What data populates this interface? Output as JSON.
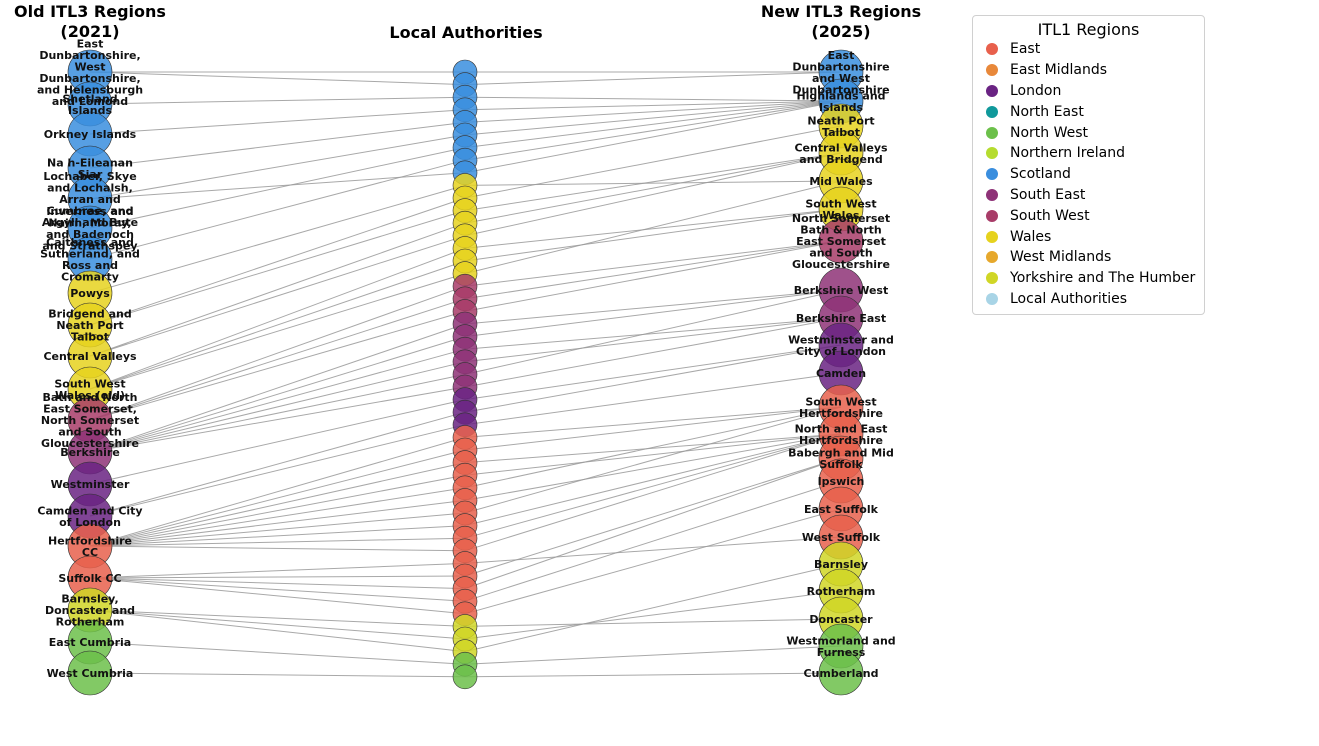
{
  "chart_data": {
    "type": "network",
    "columns": {
      "left_title": "Old ITL3 Regions\n(2021)",
      "middle_title": "Local Authorities",
      "right_title": "New ITL3 Regions\n(2025)"
    },
    "legend_title": "ITL1 Regions",
    "legend": [
      {
        "name": "East",
        "color": "#e8604c"
      },
      {
        "name": "East Midlands",
        "color": "#e8883a"
      },
      {
        "name": "London",
        "color": "#6a2383"
      },
      {
        "name": "North East",
        "color": "#10999b"
      },
      {
        "name": "North West",
        "color": "#6cc04a"
      },
      {
        "name": "Northern Ireland",
        "color": "#b5dc2f"
      },
      {
        "name": "Scotland",
        "color": "#3a8ede"
      },
      {
        "name": "South East",
        "color": "#8e3277"
      },
      {
        "name": "South West",
        "color": "#a83c68"
      },
      {
        "name": "Wales",
        "color": "#e6d21e"
      },
      {
        "name": "West Midlands",
        "color": "#e6a82c"
      },
      {
        "name": "Yorkshire and The Humber",
        "color": "#d0d626"
      },
      {
        "name": "Local Authorities",
        "color": "#a8d4e6"
      }
    ],
    "old_regions": [
      {
        "label": "East\nDunbartonshire,\nWest\nDunbartonshire,\nand Helensburgh\nand Lomond",
        "region": "Scotland"
      },
      {
        "label": "Shetland\nIslands",
        "region": "Scotland"
      },
      {
        "label": "Orkney Islands",
        "region": "Scotland"
      },
      {
        "label": "Na h-Eileanan\nSiar",
        "region": "Scotland"
      },
      {
        "label": "Lochaber, Skye\nand Lochalsh,\nArran and\nCumbrae, and\nArgyll and Bute",
        "region": "Scotland"
      },
      {
        "label": "Inverness and\nNairn, Moray,\nand Badenoch\nand Strathspey",
        "region": "Scotland"
      },
      {
        "label": "Caithness and\nSutherland, and\nRoss and\nCromarty",
        "region": "Scotland"
      },
      {
        "label": "Powys",
        "region": "Wales"
      },
      {
        "label": "Bridgend and\nNeath Port\nTalbot",
        "region": "Wales"
      },
      {
        "label": "Central Valleys",
        "region": "Wales"
      },
      {
        "label": "South West\nWales (old)",
        "region": "Wales"
      },
      {
        "label": "Bath and North\nEast Somerset,\nNorth Somerset\nand South\nGloucestershire",
        "region": "South West"
      },
      {
        "label": "Berkshire",
        "region": "South East"
      },
      {
        "label": "Westminster",
        "region": "London"
      },
      {
        "label": "Camden and City\nof London",
        "region": "London"
      },
      {
        "label": "Hertfordshire\nCC",
        "region": "East"
      },
      {
        "label": "Suffolk CC",
        "region": "East"
      },
      {
        "label": "Barnsley,\nDoncaster and\nRotherham",
        "region": "Yorkshire and The Humber"
      },
      {
        "label": "East Cumbria",
        "region": "North West"
      },
      {
        "label": "West Cumbria",
        "region": "North West"
      }
    ],
    "new_regions": [
      {
        "label": "East\nDunbartonshire\nand West\nDunbartonshire",
        "region": "Scotland"
      },
      {
        "label": "Highlands and\nIslands",
        "region": "Scotland"
      },
      {
        "label": "Neath Port\nTalbot",
        "region": "Wales"
      },
      {
        "label": "Central Valleys\nand Bridgend",
        "region": "Wales"
      },
      {
        "label": "Mid Wales",
        "region": "Wales"
      },
      {
        "label": "South West\nWales",
        "region": "Wales"
      },
      {
        "label": "North Somerset\nBath & North\nEast Somerset\nand South\nGloucestershire",
        "region": "South West"
      },
      {
        "label": "Berkshire West",
        "region": "South East"
      },
      {
        "label": "Berkshire East",
        "region": "South East"
      },
      {
        "label": "Westminster and\nCity of London",
        "region": "London"
      },
      {
        "label": "Camden",
        "region": "London"
      },
      {
        "label": "South West\nHertfordshire",
        "region": "East"
      },
      {
        "label": "North and East\nHertfordshire",
        "region": "East"
      },
      {
        "label": "Babergh and Mid\nSuffolk",
        "region": "East"
      },
      {
        "label": "Ipswich",
        "region": "East"
      },
      {
        "label": "East Suffolk",
        "region": "East"
      },
      {
        "label": "West Suffolk",
        "region": "East"
      },
      {
        "label": "Barnsley",
        "region": "Yorkshire and The Humber"
      },
      {
        "label": "Rotherham",
        "region": "Yorkshire and The Humber"
      },
      {
        "label": "Doncaster",
        "region": "Yorkshire and The Humber"
      },
      {
        "label": "Westmorland and\nFurness",
        "region": "North West"
      },
      {
        "label": "Cumberland",
        "region": "North West"
      }
    ],
    "local_authorities": [
      {
        "old": 0,
        "new": 0,
        "region": "Scotland"
      },
      {
        "old": 0,
        "new": 0,
        "region": "Scotland"
      },
      {
        "old": 1,
        "new": 1,
        "region": "Scotland"
      },
      {
        "old": 2,
        "new": 1,
        "region": "Scotland"
      },
      {
        "old": 3,
        "new": 1,
        "region": "Scotland"
      },
      {
        "old": 4,
        "new": 1,
        "region": "Scotland"
      },
      {
        "old": 5,
        "new": 1,
        "region": "Scotland"
      },
      {
        "old": 6,
        "new": 1,
        "region": "Scotland"
      },
      {
        "old": 4,
        "new": 1,
        "region": "Scotland"
      },
      {
        "old": 7,
        "new": 4,
        "region": "Wales"
      },
      {
        "old": 8,
        "new": 2,
        "region": "Wales"
      },
      {
        "old": 8,
        "new": 3,
        "region": "Wales"
      },
      {
        "old": 9,
        "new": 3,
        "region": "Wales"
      },
      {
        "old": 9,
        "new": 3,
        "region": "Wales"
      },
      {
        "old": 10,
        "new": 5,
        "region": "Wales"
      },
      {
        "old": 10,
        "new": 5,
        "region": "Wales"
      },
      {
        "old": 10,
        "new": 4,
        "region": "Wales"
      },
      {
        "old": 11,
        "new": 6,
        "region": "South West"
      },
      {
        "old": 11,
        "new": 6,
        "region": "South West"
      },
      {
        "old": 11,
        "new": 6,
        "region": "South West"
      },
      {
        "old": 12,
        "new": 7,
        "region": "South East"
      },
      {
        "old": 12,
        "new": 7,
        "region": "South East"
      },
      {
        "old": 12,
        "new": 8,
        "region": "South East"
      },
      {
        "old": 12,
        "new": 8,
        "region": "South East"
      },
      {
        "old": 12,
        "new": 7,
        "region": "South East"
      },
      {
        "old": 12,
        "new": 8,
        "region": "South East"
      },
      {
        "old": 13,
        "new": 9,
        "region": "London"
      },
      {
        "old": 14,
        "new": 9,
        "region": "London"
      },
      {
        "old": 14,
        "new": 10,
        "region": "London"
      },
      {
        "old": 15,
        "new": 11,
        "region": "East"
      },
      {
        "old": 15,
        "new": 11,
        "region": "East"
      },
      {
        "old": 15,
        "new": 12,
        "region": "East"
      },
      {
        "old": 15,
        "new": 12,
        "region": "East"
      },
      {
        "old": 15,
        "new": 11,
        "region": "East"
      },
      {
        "old": 15,
        "new": 12,
        "region": "East"
      },
      {
        "old": 15,
        "new": 11,
        "region": "East"
      },
      {
        "old": 15,
        "new": 12,
        "region": "East"
      },
      {
        "old": 15,
        "new": 12,
        "region": "East"
      },
      {
        "old": 15,
        "new": 12,
        "region": "East"
      },
      {
        "old": 16,
        "new": 16,
        "region": "East"
      },
      {
        "old": 16,
        "new": 13,
        "region": "East"
      },
      {
        "old": 16,
        "new": 13,
        "region": "East"
      },
      {
        "old": 16,
        "new": 14,
        "region": "East"
      },
      {
        "old": 16,
        "new": 15,
        "region": "East"
      },
      {
        "old": 17,
        "new": 19,
        "region": "Yorkshire and The Humber"
      },
      {
        "old": 17,
        "new": 18,
        "region": "Yorkshire and The Humber"
      },
      {
        "old": 17,
        "new": 17,
        "region": "Yorkshire and The Humber"
      },
      {
        "old": 18,
        "new": 20,
        "region": "North West"
      },
      {
        "old": 19,
        "new": 21,
        "region": "North West"
      }
    ]
  }
}
